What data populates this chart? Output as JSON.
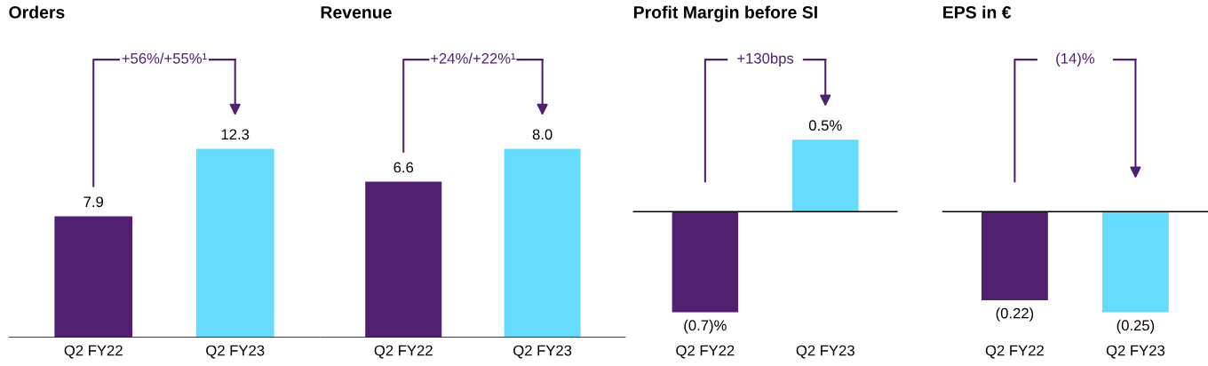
{
  "chart_data": [
    {
      "type": "bar",
      "title": "Orders",
      "categories": [
        "Q2 FY22",
        "Q2 FY23"
      ],
      "values": [
        7.9,
        12.3
      ],
      "colors": [
        "#512071",
        "#66dcfc"
      ],
      "value_labels": [
        "7.9",
        "12.3"
      ],
      "annotations": [
        "+56%/+55%¹"
      ],
      "tick_labels": "x"
    },
    {
      "type": "bar",
      "title": "Revenue",
      "categories": [
        "Q2 FY22",
        "Q2 FY23"
      ],
      "values": [
        6.6,
        8.0
      ],
      "colors": [
        "#512071",
        "#66dcfc"
      ],
      "value_labels": [
        "6.6",
        "8.0"
      ],
      "annotations": [
        "+24%/+22%¹"
      ],
      "tick_labels": "x"
    },
    {
      "type": "bar",
      "title": "Profit Margin before SI",
      "categories": [
        "Q2 FY22",
        "Q2 FY23"
      ],
      "values": [
        -0.7,
        0.5
      ],
      "colors": [
        "#512071",
        "#66dcfc"
      ],
      "value_labels": [
        "(0.7)%",
        "0.5%"
      ],
      "annotations": [
        "+130bps"
      ],
      "tick_labels": "x"
    },
    {
      "type": "bar",
      "title": "EPS in €",
      "categories": [
        "Q2 FY22",
        "Q2 FY23"
      ],
      "values": [
        -0.22,
        -0.25
      ],
      "colors": [
        "#512071",
        "#66dcfc"
      ],
      "value_labels": [
        "(0.22)",
        "(0.25)"
      ],
      "annotations": [
        "(14)%"
      ],
      "tick_labels": "x"
    }
  ]
}
